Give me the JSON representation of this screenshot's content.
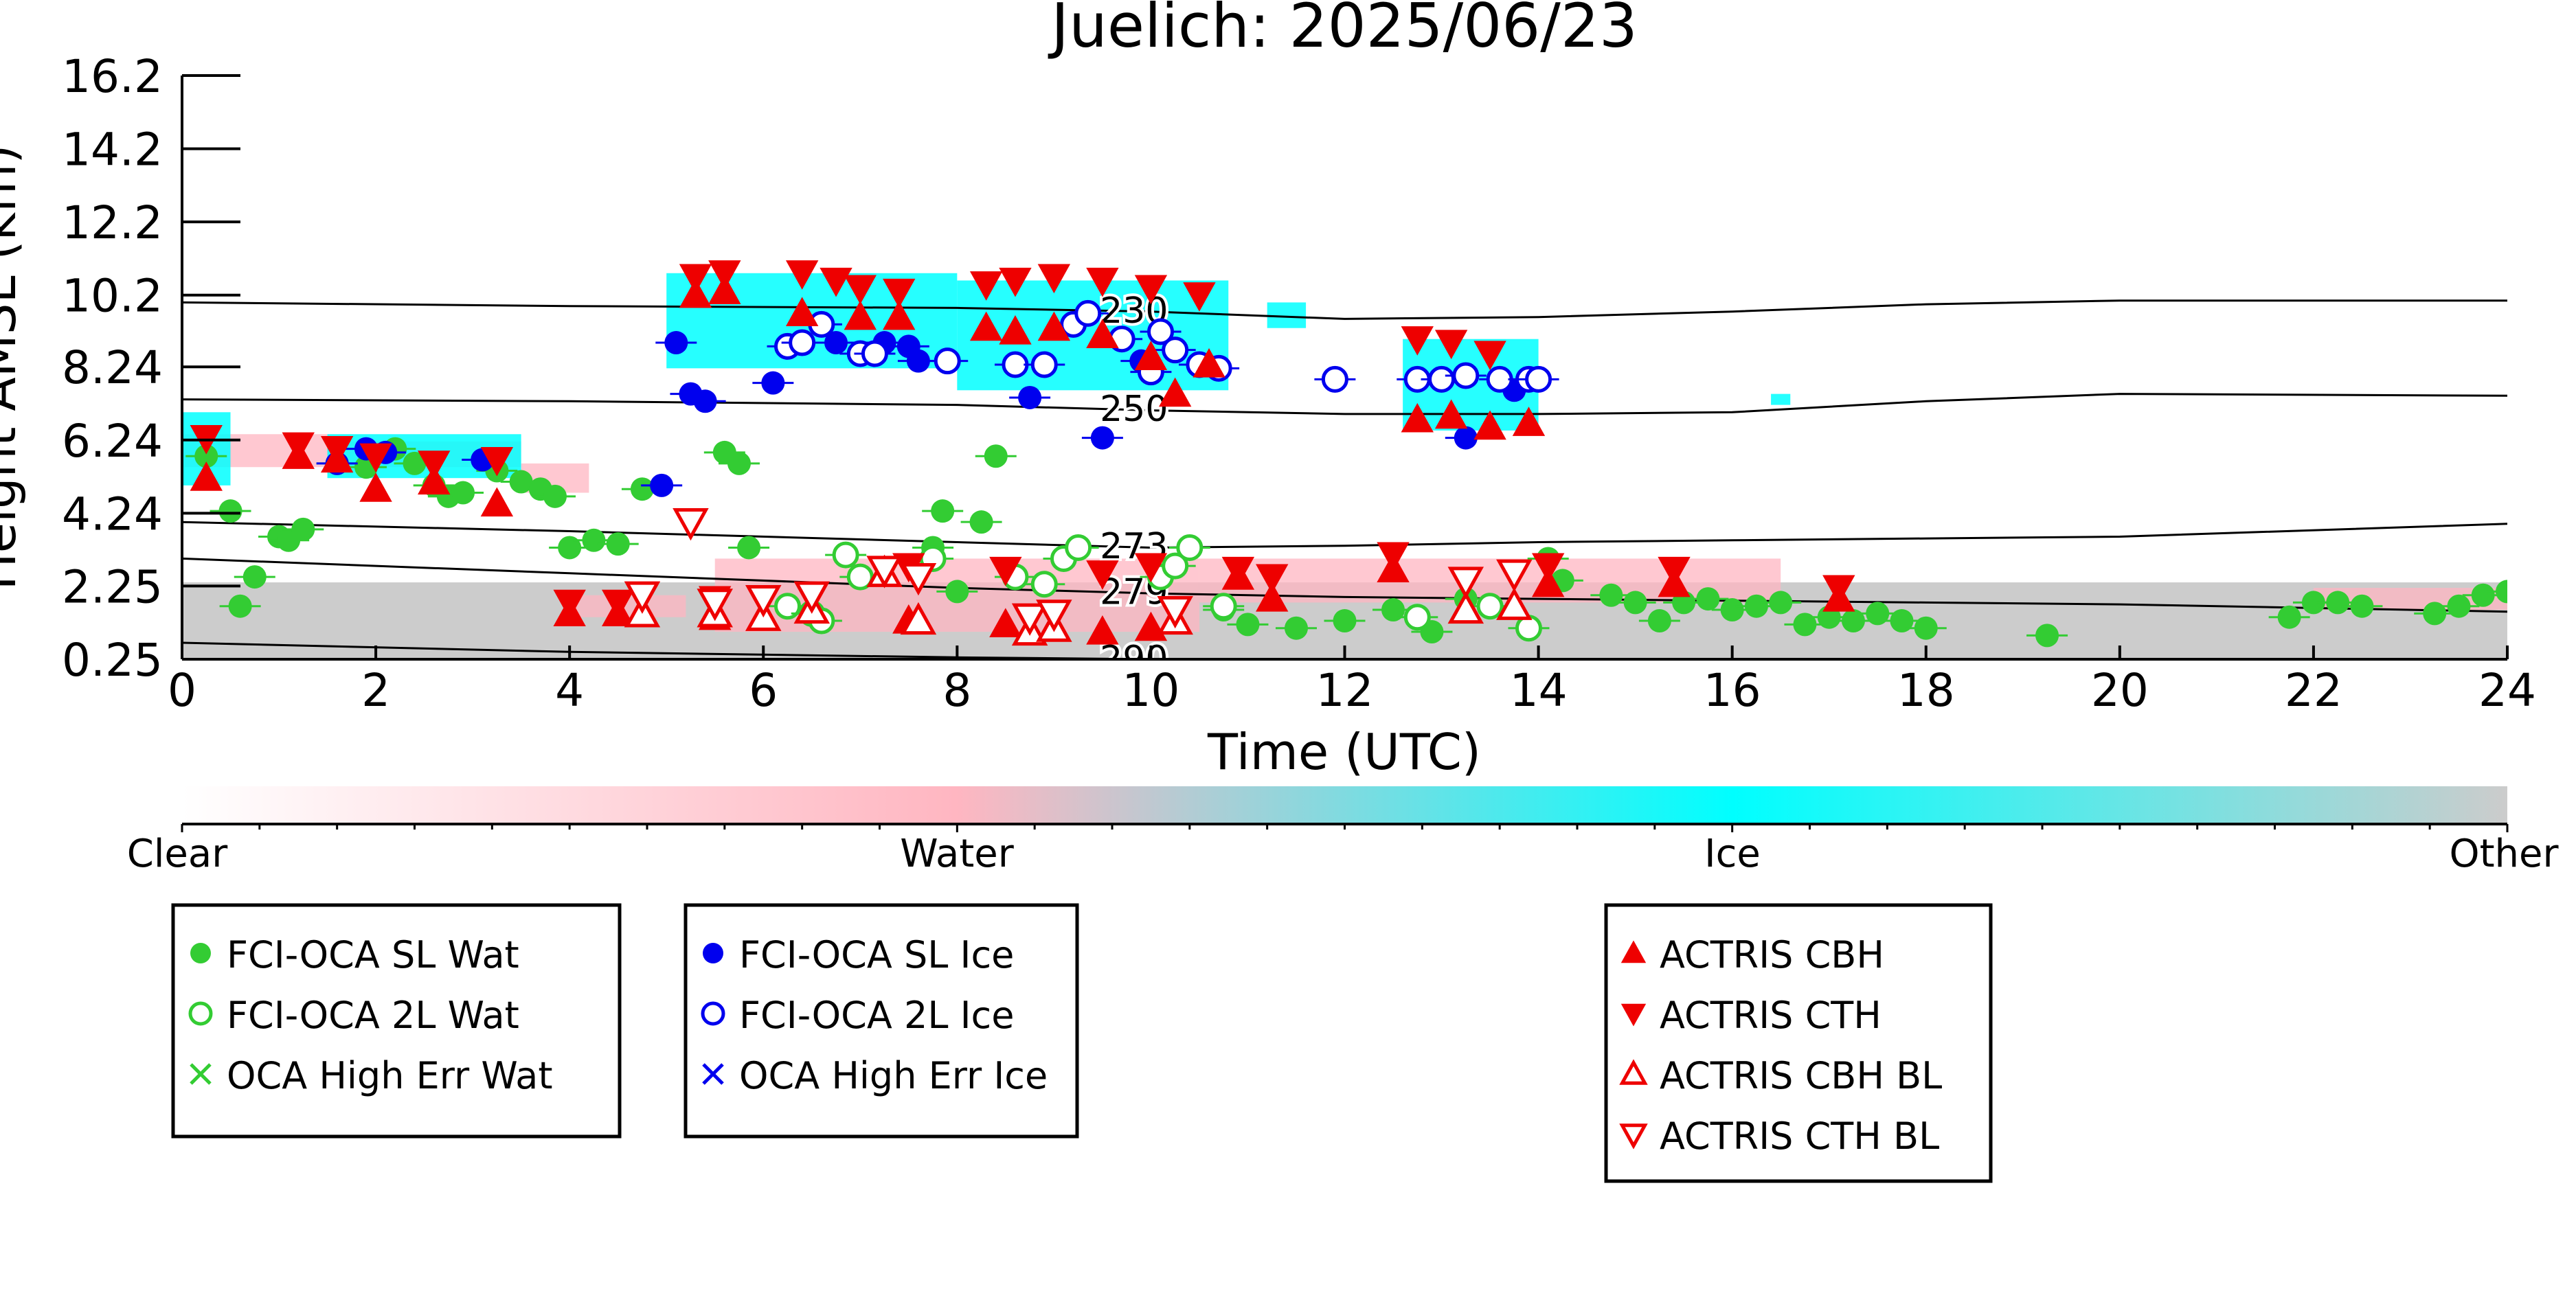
{
  "chart_data": {
    "type": "scatter",
    "title": "Juelich: 2025/06/23",
    "xlabel": "Time (UTC)",
    "ylabel": "Height AMSL (km)",
    "xlim": [
      0,
      24
    ],
    "ylim": [
      0.25,
      16.2
    ],
    "x_ticks": [
      0,
      2,
      4,
      6,
      8,
      10,
      12,
      14,
      16,
      18,
      20,
      22,
      24
    ],
    "y_ticks": [
      0.25,
      2.25,
      4.24,
      6.24,
      8.24,
      10.2,
      12.2,
      14.2,
      16.2
    ],
    "y_tick_labels": [
      "0.25",
      "2.25",
      "4.24",
      "6.24",
      "8.24",
      "10.2",
      "12.2",
      "14.2",
      "16.2"
    ],
    "grid": false,
    "colors": {
      "fci_wat": "#33cc33",
      "fci_ice": "#0000ee",
      "actris": "#ee0000",
      "cloud_water": "#ffb6c1",
      "cloud_ice": "#00ffff",
      "cloud_other": "#cccccc"
    },
    "colorbar": {
      "labels": [
        "Clear",
        "Water",
        "Ice",
        "Other"
      ],
      "stops": [
        "#ffffff",
        "#ffb6c1",
        "#00ffff",
        "#cccccc"
      ]
    },
    "isotherms": [
      {
        "label": "230",
        "label_x": 9.4,
        "points": [
          [
            0,
            10.0
          ],
          [
            4,
            9.9
          ],
          [
            8,
            9.85
          ],
          [
            10,
            9.75
          ],
          [
            12,
            9.55
          ],
          [
            14,
            9.6
          ],
          [
            16,
            9.75
          ],
          [
            18,
            9.95
          ],
          [
            20,
            10.05
          ],
          [
            24,
            10.05
          ]
        ]
      },
      {
        "label": "250",
        "label_x": 9.4,
        "points": [
          [
            0,
            7.35
          ],
          [
            4,
            7.3
          ],
          [
            8,
            7.2
          ],
          [
            10,
            7.05
          ],
          [
            12,
            6.95
          ],
          [
            14,
            6.95
          ],
          [
            16,
            7.0
          ],
          [
            18,
            7.3
          ],
          [
            20,
            7.5
          ],
          [
            24,
            7.45
          ]
        ]
      },
      {
        "label": "273",
        "label_x": 9.4,
        "points": [
          [
            0,
            4.0
          ],
          [
            4,
            3.75
          ],
          [
            8,
            3.45
          ],
          [
            10,
            3.3
          ],
          [
            12,
            3.35
          ],
          [
            14,
            3.45
          ],
          [
            16,
            3.5
          ],
          [
            18,
            3.55
          ],
          [
            20,
            3.6
          ],
          [
            24,
            3.95
          ]
        ]
      },
      {
        "label": "279",
        "label_x": 9.4,
        "points": [
          [
            0,
            3.0
          ],
          [
            4,
            2.6
          ],
          [
            8,
            2.2
          ],
          [
            10,
            2.05
          ],
          [
            12,
            1.95
          ],
          [
            14,
            1.9
          ],
          [
            16,
            1.85
          ],
          [
            18,
            1.8
          ],
          [
            20,
            1.75
          ],
          [
            24,
            1.55
          ]
        ]
      },
      {
        "label": "290",
        "label_x": 9.4,
        "points": [
          [
            0,
            0.7
          ],
          [
            4,
            0.45
          ],
          [
            8,
            0.3
          ],
          [
            10,
            0.25
          ],
          [
            12,
            0.25
          ],
          [
            24,
            0.25
          ]
        ]
      }
    ],
    "series": [
      {
        "name": "FCI-OCA SL Wat",
        "marker": "filled-circle",
        "color": "#33cc33",
        "points": [
          [
            0.25,
            5.8
          ],
          [
            0.5,
            4.3
          ],
          [
            0.6,
            1.7
          ],
          [
            0.75,
            2.5
          ],
          [
            1.0,
            3.6
          ],
          [
            1.1,
            3.5
          ],
          [
            1.25,
            3.8
          ],
          [
            1.6,
            5.6
          ],
          [
            1.9,
            5.5
          ],
          [
            2.2,
            6.0
          ],
          [
            2.4,
            5.6
          ],
          [
            2.6,
            5.0
          ],
          [
            2.75,
            4.7
          ],
          [
            2.9,
            4.8
          ],
          [
            3.25,
            5.4
          ],
          [
            3.5,
            5.1
          ],
          [
            3.7,
            4.9
          ],
          [
            3.85,
            4.7
          ],
          [
            4.0,
            3.3
          ],
          [
            4.25,
            3.5
          ],
          [
            4.5,
            3.4
          ],
          [
            4.75,
            4.9
          ],
          [
            5.6,
            5.9
          ],
          [
            5.75,
            5.6
          ],
          [
            5.85,
            3.3
          ],
          [
            7.75,
            3.3
          ],
          [
            7.85,
            4.3
          ],
          [
            8.0,
            2.1
          ],
          [
            8.25,
            4.0
          ],
          [
            8.4,
            5.8
          ],
          [
            10.75,
            1.6
          ],
          [
            11.0,
            1.2
          ],
          [
            11.5,
            1.1
          ],
          [
            12.0,
            1.3
          ],
          [
            12.5,
            1.6
          ],
          [
            12.9,
            1.0
          ],
          [
            13.25,
            1.9
          ],
          [
            14.1,
            3.0
          ],
          [
            14.25,
            2.4
          ],
          [
            14.75,
            2.0
          ],
          [
            15.0,
            1.8
          ],
          [
            15.25,
            1.3
          ],
          [
            15.5,
            1.8
          ],
          [
            15.75,
            1.9
          ],
          [
            16.0,
            1.6
          ],
          [
            16.25,
            1.7
          ],
          [
            16.5,
            1.8
          ],
          [
            16.75,
            1.2
          ],
          [
            17.0,
            1.4
          ],
          [
            17.25,
            1.3
          ],
          [
            17.5,
            1.5
          ],
          [
            17.75,
            1.3
          ],
          [
            18.0,
            1.1
          ],
          [
            19.25,
            0.9
          ],
          [
            21.75,
            1.4
          ],
          [
            22.0,
            1.8
          ],
          [
            22.25,
            1.8
          ],
          [
            22.5,
            1.7
          ],
          [
            23.25,
            1.5
          ],
          [
            23.5,
            1.7
          ],
          [
            23.75,
            2.0
          ],
          [
            24.0,
            2.1
          ]
        ]
      },
      {
        "name": "FCI-OCA 2L Wat",
        "marker": "open-circle",
        "color": "#33cc33",
        "points": [
          [
            6.25,
            1.7
          ],
          [
            6.5,
            1.5
          ],
          [
            6.6,
            1.3
          ],
          [
            6.85,
            3.1
          ],
          [
            7.0,
            2.5
          ],
          [
            7.75,
            3.0
          ],
          [
            8.6,
            2.5
          ],
          [
            8.9,
            2.3
          ],
          [
            9.1,
            3.0
          ],
          [
            9.25,
            3.3
          ],
          [
            10.1,
            2.5
          ],
          [
            10.25,
            2.8
          ],
          [
            10.4,
            3.3
          ],
          [
            10.75,
            1.7
          ],
          [
            12.75,
            1.4
          ],
          [
            13.5,
            1.7
          ],
          [
            13.9,
            1.1
          ]
        ]
      },
      {
        "name": "OCA High Err Wat",
        "marker": "x",
        "color": "#33cc33",
        "points": []
      },
      {
        "name": "FCI-OCA SL Ice",
        "marker": "filled-circle",
        "color": "#0000ee",
        "points": [
          [
            1.6,
            5.6
          ],
          [
            1.9,
            6.0
          ],
          [
            2.1,
            5.9
          ],
          [
            3.1,
            5.7
          ],
          [
            4.95,
            5.0
          ],
          [
            5.1,
            8.9
          ],
          [
            5.25,
            7.5
          ],
          [
            5.4,
            7.3
          ],
          [
            6.1,
            7.8
          ],
          [
            6.75,
            8.9
          ],
          [
            7.25,
            8.9
          ],
          [
            7.5,
            8.8
          ],
          [
            7.6,
            8.4
          ],
          [
            8.75,
            7.4
          ],
          [
            9.5,
            6.3
          ],
          [
            9.9,
            8.4
          ],
          [
            13.25,
            6.3
          ],
          [
            13.75,
            7.6
          ]
        ]
      },
      {
        "name": "FCI-OCA 2L Ice",
        "marker": "open-circle",
        "color": "#0000ee",
        "points": [
          [
            6.25,
            8.8
          ],
          [
            6.4,
            8.9
          ],
          [
            6.6,
            9.4
          ],
          [
            7.0,
            8.6
          ],
          [
            7.15,
            8.6
          ],
          [
            7.9,
            8.4
          ],
          [
            8.6,
            8.3
          ],
          [
            8.9,
            8.3
          ],
          [
            9.2,
            9.4
          ],
          [
            9.35,
            9.7
          ],
          [
            9.7,
            9.0
          ],
          [
            10.0,
            8.1
          ],
          [
            10.1,
            9.2
          ],
          [
            10.25,
            8.7
          ],
          [
            10.5,
            8.3
          ],
          [
            10.7,
            8.2
          ],
          [
            11.9,
            7.9
          ],
          [
            12.75,
            7.9
          ],
          [
            13.0,
            7.9
          ],
          [
            13.25,
            8.0
          ],
          [
            13.6,
            7.9
          ],
          [
            13.9,
            7.9
          ],
          [
            14.0,
            7.9
          ]
        ]
      },
      {
        "name": "OCA High Err Ice",
        "marker": "x",
        "color": "#0000ee",
        "points": []
      },
      {
        "name": "ACTRIS CBH",
        "marker": "filled-triangle-up",
        "color": "#ee0000",
        "points": [
          [
            0.25,
            5.2
          ],
          [
            1.2,
            5.8
          ],
          [
            1.6,
            5.7
          ],
          [
            2.0,
            4.9
          ],
          [
            2.6,
            5.1
          ],
          [
            3.25,
            4.5
          ],
          [
            5.3,
            10.2
          ],
          [
            5.6,
            10.3
          ],
          [
            6.4,
            9.7
          ],
          [
            7.0,
            9.6
          ],
          [
            7.4,
            9.6
          ],
          [
            8.3,
            9.3
          ],
          [
            8.6,
            9.2
          ],
          [
            9.0,
            9.3
          ],
          [
            9.5,
            9.1
          ],
          [
            10.0,
            8.5
          ],
          [
            10.25,
            7.5
          ],
          [
            10.6,
            8.3
          ],
          [
            12.75,
            6.8
          ],
          [
            13.1,
            6.9
          ],
          [
            13.5,
            6.6
          ],
          [
            13.9,
            6.7
          ],
          [
            4.0,
            1.5
          ],
          [
            4.5,
            1.5
          ],
          [
            5.5,
            1.4
          ],
          [
            7.5,
            1.3
          ],
          [
            8.5,
            1.2
          ],
          [
            9.5,
            1.0
          ],
          [
            10.0,
            1.1
          ],
          [
            10.9,
            2.5
          ],
          [
            11.25,
            1.9
          ],
          [
            12.5,
            2.7
          ],
          [
            14.1,
            2.3
          ],
          [
            15.4,
            2.3
          ],
          [
            17.1,
            1.9
          ]
        ]
      },
      {
        "name": "ACTRIS CTH",
        "marker": "filled-triangle-down",
        "color": "#ee0000",
        "points": [
          [
            0.25,
            6.3
          ],
          [
            1.2,
            6.1
          ],
          [
            1.6,
            6.0
          ],
          [
            2.0,
            5.8
          ],
          [
            2.6,
            5.6
          ],
          [
            3.25,
            5.7
          ],
          [
            5.3,
            10.7
          ],
          [
            5.6,
            10.8
          ],
          [
            6.4,
            10.8
          ],
          [
            6.75,
            10.6
          ],
          [
            7.0,
            10.4
          ],
          [
            7.4,
            10.3
          ],
          [
            8.3,
            10.5
          ],
          [
            8.6,
            10.6
          ],
          [
            9.0,
            10.7
          ],
          [
            9.5,
            10.6
          ],
          [
            10.0,
            10.4
          ],
          [
            10.5,
            10.2
          ],
          [
            12.75,
            9.0
          ],
          [
            13.1,
            8.9
          ],
          [
            13.5,
            8.6
          ],
          [
            4.0,
            1.8
          ],
          [
            4.5,
            1.8
          ],
          [
            5.5,
            1.9
          ],
          [
            7.5,
            2.8
          ],
          [
            8.5,
            2.7
          ],
          [
            9.5,
            2.6
          ],
          [
            10.0,
            2.8
          ],
          [
            10.9,
            2.7
          ],
          [
            11.25,
            2.5
          ],
          [
            12.5,
            3.1
          ],
          [
            14.1,
            2.8
          ],
          [
            15.4,
            2.7
          ],
          [
            17.1,
            2.2
          ]
        ]
      },
      {
        "name": "ACTRIS CBH BL",
        "marker": "open-triangle-up",
        "color": "#ee0000",
        "points": [
          [
            4.75,
            1.5
          ],
          [
            5.5,
            1.5
          ],
          [
            6.0,
            1.4
          ],
          [
            6.5,
            1.6
          ],
          [
            7.25,
            2.6
          ],
          [
            7.6,
            1.3
          ],
          [
            8.75,
            1.0
          ],
          [
            9.0,
            1.1
          ],
          [
            10.25,
            1.3
          ],
          [
            13.25,
            1.6
          ],
          [
            13.75,
            1.7
          ]
        ]
      },
      {
        "name": "ACTRIS CTH BL",
        "marker": "open-triangle-down",
        "color": "#ee0000",
        "points": [
          [
            4.75,
            2.0
          ],
          [
            5.25,
            4.0
          ],
          [
            5.5,
            1.8
          ],
          [
            6.0,
            1.9
          ],
          [
            6.5,
            2.0
          ],
          [
            7.25,
            2.7
          ],
          [
            7.6,
            2.5
          ],
          [
            8.75,
            1.4
          ],
          [
            9.0,
            1.5
          ],
          [
            10.25,
            1.6
          ],
          [
            13.25,
            2.4
          ],
          [
            13.75,
            2.6
          ]
        ]
      }
    ],
    "cloud_mask": {
      "other_low_layer": {
        "x": [
          0,
          24
        ],
        "top": 2.35,
        "bottom": 0.25
      },
      "water_regions": [
        [
          0.0,
          5.5,
          1.5,
          6.4
        ],
        [
          1.5,
          5.5,
          3.5,
          6.2
        ],
        [
          3.5,
          4.8,
          4.2,
          5.6
        ],
        [
          5.5,
          1.0,
          10.5,
          3.0
        ],
        [
          4.0,
          1.4,
          5.2,
          2.0
        ],
        [
          10.5,
          1.8,
          16.5,
          3.0
        ],
        [
          22.0,
          1.6,
          24.0,
          2.2
        ]
      ],
      "ice_regions": [
        [
          0.0,
          5.0,
          0.5,
          7.0
        ],
        [
          1.5,
          5.2,
          3.5,
          6.4
        ],
        [
          5.0,
          8.2,
          8.0,
          10.8
        ],
        [
          8.0,
          7.6,
          10.8,
          10.6
        ],
        [
          12.6,
          6.5,
          14.0,
          9.0
        ],
        [
          11.2,
          9.3,
          11.6,
          10.0
        ],
        [
          16.4,
          7.2,
          16.6,
          7.5
        ]
      ]
    },
    "legend_boxes": [
      [
        "FCI-OCA SL Wat",
        "FCI-OCA 2L Wat",
        "OCA High Err Wat"
      ],
      [
        "FCI-OCA SL Ice",
        "FCI-OCA 2L Ice",
        "OCA High Err Ice"
      ],
      [
        "ACTRIS CBH",
        "ACTRIS CTH",
        "ACTRIS CBH BL",
        "ACTRIS CTH BL"
      ]
    ]
  }
}
